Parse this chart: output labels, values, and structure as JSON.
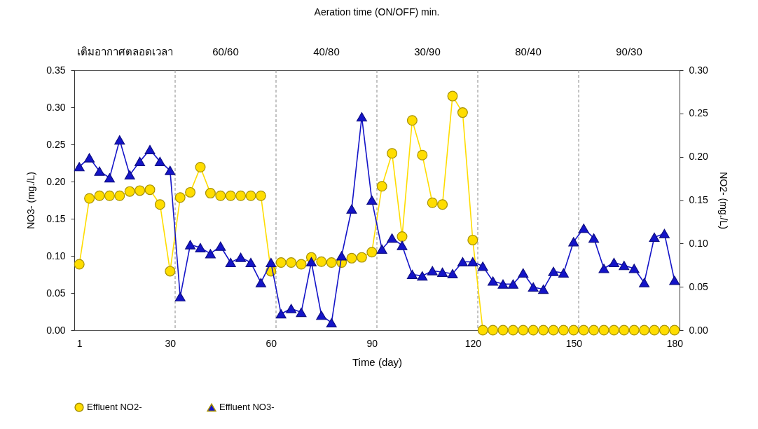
{
  "chart_data": {
    "type": "line",
    "title": "Aeration time  (ON/OFF) min.",
    "xlabel": "Time (day)",
    "ylabel": "NO3- (mg./L)",
    "y2label": "NO2- (mg./L)",
    "annotations": [
      "เติมอากาศตลอดเวลา",
      "60/60",
      "40/80",
      "30/90",
      "80/40",
      "90/30"
    ],
    "categories": [
      "1",
      null,
      null,
      null,
      null,
      null,
      null,
      null,
      null,
      "30",
      null,
      null,
      null,
      null,
      null,
      null,
      null,
      null,
      null,
      "60",
      null,
      null,
      null,
      null,
      null,
      null,
      null,
      null,
      null,
      "90",
      null,
      null,
      null,
      null,
      null,
      null,
      null,
      null,
      null,
      "120",
      null,
      null,
      null,
      null,
      null,
      null,
      null,
      null,
      null,
      "150",
      null,
      null,
      null,
      null,
      null,
      null,
      null,
      null,
      null,
      "180"
    ],
    "series": [
      {
        "name": "Effluent NO2-",
        "color": "#ffdd00",
        "marker": "circle",
        "axis": "y2",
        "values": [
          0.076,
          0.152,
          0.155,
          0.155,
          0.155,
          0.16,
          0.161,
          0.162,
          0.145,
          0.068,
          0.153,
          0.159,
          0.188,
          0.158,
          0.155,
          0.155,
          0.155,
          0.155,
          0.155,
          0.068,
          0.078,
          0.078,
          0.076,
          0.084,
          0.079,
          0.078,
          0.078,
          0.083,
          0.084,
          0.09,
          0.166,
          0.204,
          0.108,
          0.242,
          0.202,
          0.147,
          0.145,
          0.27,
          0.251,
          0.104,
          0,
          0,
          0,
          0,
          0,
          0,
          0,
          0,
          0,
          0,
          0,
          0,
          0,
          0,
          0,
          0,
          0,
          0,
          0,
          0
        ]
      },
      {
        "name": "Effluent NO3-",
        "color": "#1414c8",
        "marker": "triangle",
        "axis": "y",
        "values": [
          0.22,
          0.232,
          0.214,
          0.205,
          0.256,
          0.209,
          0.227,
          0.243,
          0.227,
          0.215,
          0.045,
          0.115,
          0.111,
          0.103,
          0.113,
          0.091,
          0.098,
          0.091,
          0.064,
          0.091,
          0.022,
          0.029,
          0.024,
          0.092,
          0.02,
          0.01,
          0.1,
          0.163,
          0.287,
          0.175,
          0.109,
          0.124,
          0.114,
          0.075,
          0.073,
          0.08,
          0.078,
          0.076,
          0.092,
          0.092,
          0.086,
          0.066,
          0.062,
          0.062,
          0.077,
          0.058,
          0.055,
          0.079,
          0.077,
          0.119,
          0.137,
          0.124,
          0.083,
          0.091,
          0.087,
          0.083,
          0.064,
          0.125,
          0.13,
          0.067
        ]
      }
    ],
    "ylim": [
      0,
      0.35
    ],
    "yticks": [
      {
        "value": 0,
        "label": "0.00"
      },
      {
        "value": 0.05,
        "label": "0.05"
      },
      {
        "value": 0.1,
        "label": "0.10"
      },
      {
        "value": 0.15,
        "label": "0.15"
      },
      {
        "value": 0.2,
        "label": "0.20"
      },
      {
        "value": 0.25,
        "label": "0.25"
      },
      {
        "value": 0.3,
        "label": "0.30"
      },
      {
        "value": 0.35,
        "label": "0.35"
      }
    ],
    "y2lim": [
      0,
      0.3
    ],
    "y2ticks": [
      {
        "value": 0,
        "label": "0.00"
      },
      {
        "value": 0.05,
        "label": "0.05"
      },
      {
        "value": 0.1,
        "label": "0.10"
      },
      {
        "value": 0.15,
        "label": "0.15"
      },
      {
        "value": 0.2,
        "label": "0.20"
      },
      {
        "value": 0.25,
        "label": "0.25"
      },
      {
        "value": 0.3,
        "label": "0.30"
      }
    ],
    "grid": "x",
    "legend": "bottom",
    "line_style": "solid"
  }
}
